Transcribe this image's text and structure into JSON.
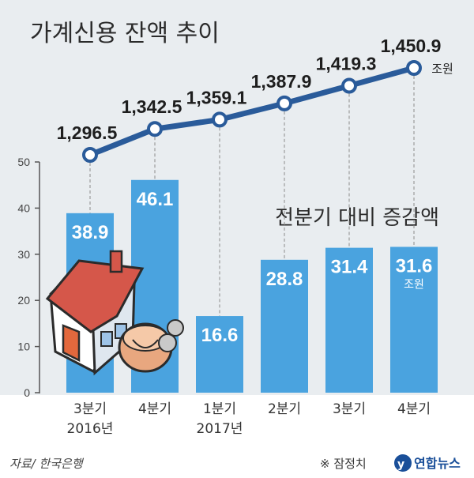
{
  "chart_data": {
    "type": "bar",
    "title": "가계신용 잔액 추이",
    "categories": [
      {
        "quarter": "3분기",
        "year": "2016년"
      },
      {
        "quarter": "4분기",
        "year": ""
      },
      {
        "quarter": "1분기",
        "year": "2017년"
      },
      {
        "quarter": "2분기",
        "year": ""
      },
      {
        "quarter": "3분기",
        "year": ""
      },
      {
        "quarter": "4분기",
        "year": ""
      }
    ],
    "bar_series": {
      "name": "전분기 대비 증감액",
      "values": [
        38.9,
        46.1,
        16.6,
        28.8,
        31.4,
        31.6
      ],
      "labels": [
        "38.9",
        "46.1",
        "16.6",
        "28.8",
        "31.4",
        "31.6"
      ],
      "unit": "조원",
      "color": "#4aa3df"
    },
    "line_series": {
      "values": [
        1296.5,
        1342.5,
        1359.1,
        1387.9,
        1419.3,
        1450.9
      ],
      "labels": [
        "1,296.5",
        "1,342.5",
        "1,359.1",
        "1,387.9",
        "1,419.3",
        "1,450.9"
      ],
      "unit": "조원",
      "color": "#2a5b9a"
    },
    "y_axis": {
      "ticks": [
        0,
        10,
        20,
        30,
        40,
        50
      ],
      "range": [
        0,
        50
      ]
    }
  },
  "source": "자료/ 한국은행",
  "note": "※ 잠정치",
  "brand": "연합뉴스"
}
